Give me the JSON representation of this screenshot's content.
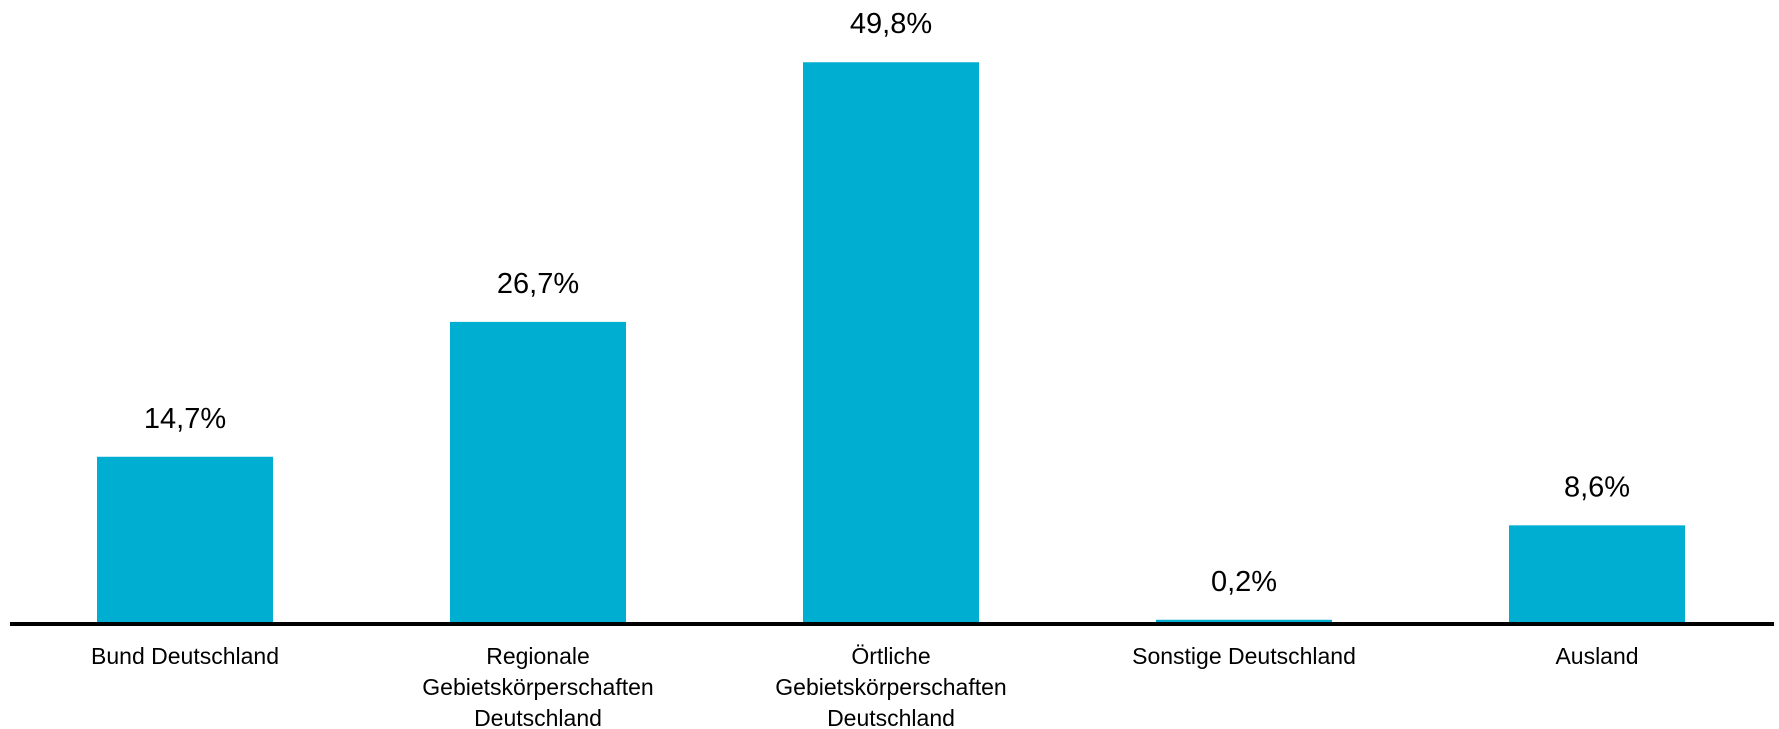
{
  "colors": {
    "bar": "#00aed1",
    "axis": "#000000",
    "text": "#000000"
  },
  "chart_data": {
    "type": "bar",
    "categories": [
      [
        "Bund Deutschland"
      ],
      [
        "Regionale",
        "Gebietskörperschaften",
        "Deutschland"
      ],
      [
        "Örtliche",
        "Gebietskörperschaften",
        "Deutschland"
      ],
      [
        "Sonstige Deutschland"
      ],
      [
        "Ausland"
      ]
    ],
    "values": [
      14.7,
      26.7,
      49.8,
      0.2,
      8.6
    ],
    "value_labels": [
      "14,7%",
      "26,7%",
      "49,8%",
      "0,2%",
      "8,6%"
    ],
    "ylim": [
      0,
      50
    ],
    "grid": false,
    "legend": "none"
  }
}
